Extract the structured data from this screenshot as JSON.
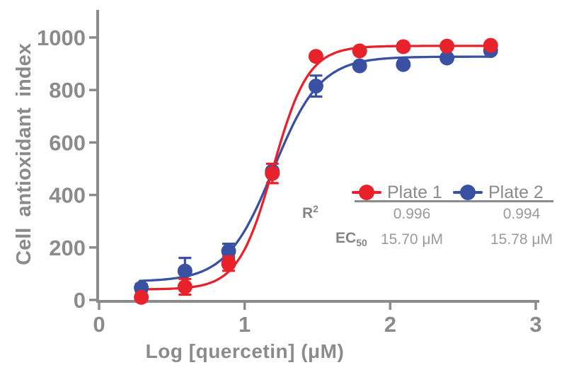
{
  "chart_data": {
    "type": "scatter",
    "title": "",
    "xlabel": "Log [quercetin] (μM)",
    "ylabel": "Cell antioxidant index",
    "xlim": [
      0,
      3
    ],
    "ylim": [
      0,
      1000
    ],
    "x_ticks": [
      0,
      1,
      2,
      3
    ],
    "y_ticks": [
      0,
      200,
      400,
      600,
      800,
      1000
    ],
    "grid": false,
    "axis_color": "#8b8b8b",
    "legend_position": "inside-right-middle",
    "series": [
      {
        "name": "Plate 1",
        "color": "#e8222b",
        "marker": "circle",
        "x": [
          0.29,
          0.59,
          0.89,
          1.19,
          1.49,
          1.79,
          2.09,
          2.39,
          2.69
        ],
        "y": [
          10,
          50,
          138,
          482,
          928,
          949,
          965,
          967,
          970
        ],
        "yerr": [
          8,
          30,
          27,
          37,
          0,
          0,
          0,
          0,
          0
        ],
        "fit": {
          "model": "4PL",
          "bottom": 40,
          "top": 968,
          "logec50": 1.196,
          "hill": 3.6
        },
        "fit_range": [
          0.28,
          2.71
        ],
        "r2": "0.996",
        "ec50": "15.70 μM"
      },
      {
        "name": "Plate 2",
        "color": "#3a50a2",
        "marker": "circle",
        "x": [
          0.29,
          0.59,
          0.89,
          1.19,
          1.49,
          1.79,
          2.09,
          2.39,
          2.69
        ],
        "y": [
          46,
          110,
          186,
          490,
          815,
          892,
          897,
          922,
          950
        ],
        "yerr": [
          15,
          50,
          28,
          0,
          40,
          0,
          0,
          0,
          0
        ],
        "fit": {
          "model": "4PL",
          "bottom": 70,
          "top": 927,
          "logec50": 1.198,
          "hill": 2.7
        },
        "fit_range": [
          0.28,
          2.68
        ],
        "r2": "0.994",
        "ec50": "15.78 μM"
      }
    ]
  },
  "legend_table": {
    "r2_label": "R",
    "r2_sup": "2",
    "ec50_label": "EC",
    "ec50_sub": "50",
    "columns": [
      {
        "label": "Plate 1",
        "r2": "0.996",
        "ec50": "15.70 μM"
      },
      {
        "label": "Plate 2",
        "r2": "0.994",
        "ec50": "15.78 μM"
      }
    ]
  }
}
